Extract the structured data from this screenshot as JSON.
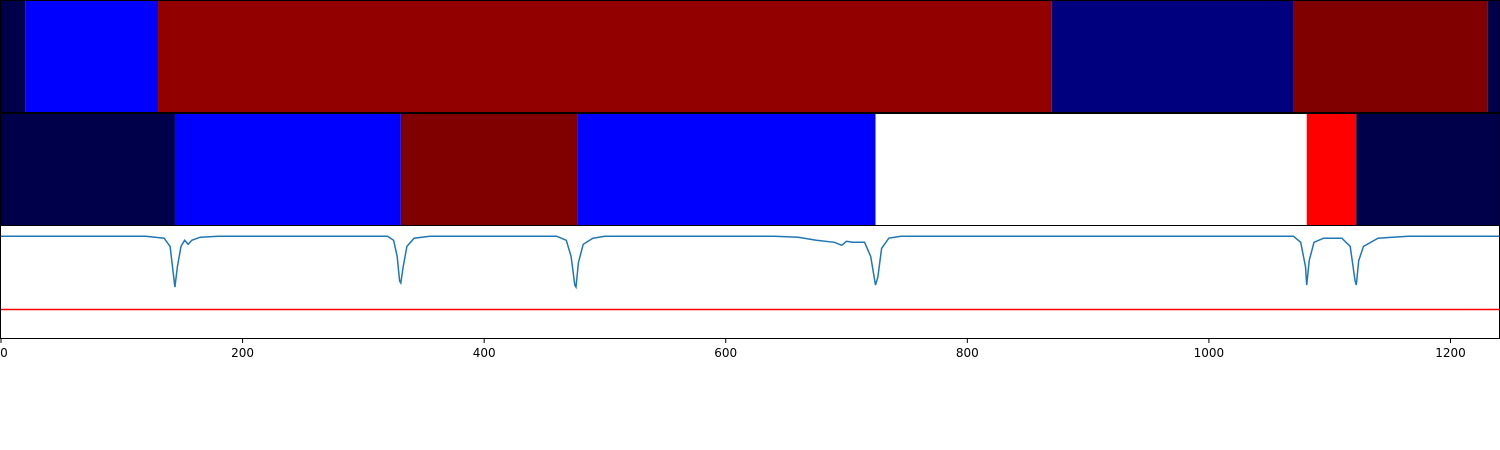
{
  "chart_data": {
    "type": "heatmap",
    "x_range": [
      0,
      1241
    ],
    "x_ticks": [
      0,
      200,
      400,
      600,
      800,
      1000,
      1200
    ],
    "x_tick_labels": [
      "0",
      "200",
      "400",
      "600",
      "800",
      "1000",
      "1200"
    ],
    "tracks": [
      {
        "segments": [
          {
            "start": 0,
            "end": 20,
            "color": "#00004a"
          },
          {
            "start": 20,
            "end": 130,
            "color": "#0000ff"
          },
          {
            "start": 130,
            "end": 870,
            "color": "#920000"
          },
          {
            "start": 870,
            "end": 1070,
            "color": "#00007e"
          },
          {
            "start": 1070,
            "end": 1231,
            "color": "#800000"
          },
          {
            "start": 1231,
            "end": 1241,
            "color": "#00004a"
          }
        ]
      },
      {
        "segments": [
          {
            "start": 0,
            "end": 144,
            "color": "#00004a"
          },
          {
            "start": 144,
            "end": 331,
            "color": "#0000ff"
          },
          {
            "start": 331,
            "end": 477,
            "color": "#800000"
          },
          {
            "start": 477,
            "end": 724,
            "color": "#0000ff"
          },
          {
            "start": 724,
            "end": 1081,
            "color": "#ffffff"
          },
          {
            "start": 1081,
            "end": 1122,
            "color": "#ff0000"
          },
          {
            "start": 1122,
            "end": 1241,
            "color": "#00004a"
          }
        ]
      }
    ],
    "line_plot": {
      "line_color": "#1f77b4",
      "threshold_color": "#ff0000",
      "ylim": [
        -0.5,
        0.05
      ],
      "threshold": -0.36,
      "series": [
        [
          0,
          0
        ],
        [
          120,
          0
        ],
        [
          135,
          -0.01
        ],
        [
          140,
          -0.05
        ],
        [
          143,
          -0.2
        ],
        [
          144,
          -0.25
        ],
        [
          146,
          -0.15
        ],
        [
          149,
          -0.05
        ],
        [
          152,
          -0.02
        ],
        [
          155,
          -0.04
        ],
        [
          158,
          -0.02
        ],
        [
          165,
          -0.005
        ],
        [
          180,
          0
        ],
        [
          320,
          0
        ],
        [
          325,
          -0.02
        ],
        [
          328,
          -0.1
        ],
        [
          330,
          -0.22
        ],
        [
          331,
          -0.23
        ],
        [
          333,
          -0.15
        ],
        [
          336,
          -0.05
        ],
        [
          342,
          -0.01
        ],
        [
          355,
          0
        ],
        [
          460,
          0
        ],
        [
          468,
          -0.02
        ],
        [
          472,
          -0.1
        ],
        [
          475,
          -0.24
        ],
        [
          476,
          -0.25
        ],
        [
          478,
          -0.13
        ],
        [
          482,
          -0.04
        ],
        [
          490,
          -0.01
        ],
        [
          500,
          0
        ],
        [
          640,
          0
        ],
        [
          660,
          -0.005
        ],
        [
          675,
          -0.02
        ],
        [
          690,
          -0.03
        ],
        [
          700,
          -0.025
        ],
        [
          696,
          -0.045
        ],
        [
          705,
          -0.03
        ],
        [
          715,
          -0.03
        ],
        [
          720,
          -0.1
        ],
        [
          724,
          -0.24
        ],
        [
          726,
          -0.2
        ],
        [
          729,
          -0.06
        ],
        [
          735,
          -0.01
        ],
        [
          745,
          0
        ],
        [
          1070,
          0
        ],
        [
          1076,
          -0.03
        ],
        [
          1080,
          -0.15
        ],
        [
          1081,
          -0.24
        ],
        [
          1083,
          -0.12
        ],
        [
          1087,
          -0.03
        ],
        [
          1095,
          -0.01
        ],
        [
          1110,
          -0.01
        ],
        [
          1117,
          -0.05
        ],
        [
          1121,
          -0.22
        ],
        [
          1122,
          -0.24
        ],
        [
          1124,
          -0.12
        ],
        [
          1128,
          -0.05
        ],
        [
          1140,
          -0.01
        ],
        [
          1165,
          0
        ],
        [
          1241,
          0
        ]
      ]
    }
  }
}
